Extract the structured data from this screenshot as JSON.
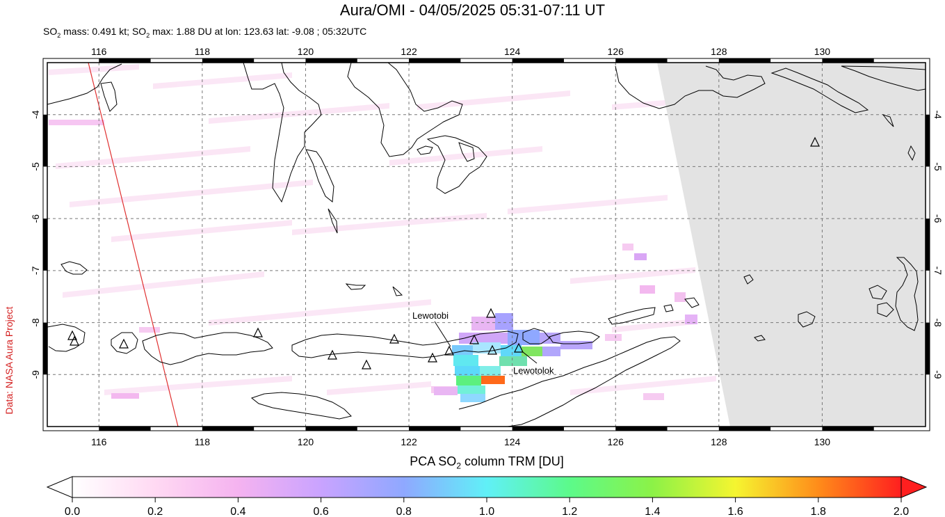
{
  "title": "Aura/OMI - 04/05/2025 05:31-07:11 UT",
  "subtitle": {
    "prefix": "SO",
    "sub1": "2",
    "mid1": " mass: 0.491 kt; SO",
    "sub2": "2",
    "rest": " max: 1.88 DU at lon: 123.63 lat: -9.08 ; 05:32UTC"
  },
  "side_label": "Data: NASA Aura Project",
  "map": {
    "lon_range": [
      115,
      132
    ],
    "lat_range": [
      -10.0,
      -3.0
    ],
    "lon_ticks": [
      "116",
      "118",
      "120",
      "122",
      "124",
      "126",
      "128",
      "130"
    ],
    "lat_ticks": [
      "-4",
      "-5",
      "-6",
      "-7",
      "-8",
      "-9"
    ],
    "volcano_labels": [
      "Lewotobi",
      "Lewotolok"
    ],
    "no_data_color": "#e3e3e3",
    "coast_color": "#000000",
    "swath_edge_color": "#e03030"
  },
  "colorbar": {
    "title_prefix": "PCA SO",
    "title_sub": "2",
    "title_rest": " column TRM [DU]",
    "min": 0.0,
    "max": 2.0,
    "ticks": [
      "0.0",
      "0.2",
      "0.4",
      "0.6",
      "0.8",
      "1.0",
      "1.2",
      "1.4",
      "1.6",
      "1.8",
      "2.0"
    ],
    "colors": [
      "#ffffff",
      "#ffd9f3",
      "#f5b3f0",
      "#c9a3ff",
      "#8fa8ff",
      "#60f0f7",
      "#5cfa8a",
      "#8cf247",
      "#f5f530",
      "#ff8c1a",
      "#ff1f1f"
    ]
  }
}
